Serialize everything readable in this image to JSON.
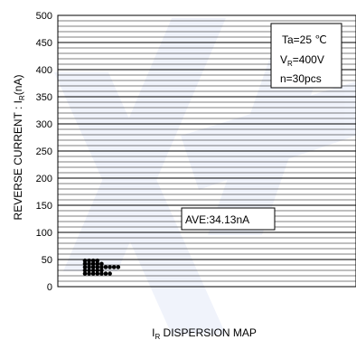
{
  "chart_data": {
    "type": "scatter",
    "title": "",
    "xlabel": {
      "main": "I",
      "sub": "R",
      "rest": " DISPERSION MAP"
    },
    "ylabel": {
      "main": "REVERSE CURRENT : I",
      "sub": "R",
      "rest": "(nA)"
    },
    "ylim": [
      0,
      500
    ],
    "yticks": [
      0,
      50,
      100,
      150,
      200,
      250,
      300,
      350,
      400,
      450,
      500
    ],
    "minor_grid_step": 10,
    "grid": true,
    "conditions": {
      "temperature": "Ta=25 ℃",
      "voltage": {
        "main": "V",
        "sub": "R",
        "rest": "=400V"
      },
      "samples": "n=30pcs"
    },
    "average_label": "AVE:34.13nA",
    "average_value": 34.13,
    "points": [
      {
        "row": 0,
        "value": 48
      },
      {
        "row": 1,
        "value": 48
      },
      {
        "row": 2,
        "value": 48
      },
      {
        "row": 3,
        "value": 48
      },
      {
        "row": 0,
        "value": 42
      },
      {
        "row": 1,
        "value": 42
      },
      {
        "row": 2,
        "value": 42
      },
      {
        "row": 3,
        "value": 42
      },
      {
        "row": 4,
        "value": 42
      },
      {
        "row": 0,
        "value": 36
      },
      {
        "row": 1,
        "value": 36
      },
      {
        "row": 2,
        "value": 36
      },
      {
        "row": 3,
        "value": 36
      },
      {
        "row": 4,
        "value": 36
      },
      {
        "row": 5,
        "value": 36
      },
      {
        "row": 6,
        "value": 36
      },
      {
        "row": 7,
        "value": 36
      },
      {
        "row": 8,
        "value": 36
      },
      {
        "row": 0,
        "value": 30
      },
      {
        "row": 1,
        "value": 30
      },
      {
        "row": 2,
        "value": 30
      },
      {
        "row": 3,
        "value": 30
      },
      {
        "row": 4,
        "value": 30
      },
      {
        "row": 0,
        "value": 24
      },
      {
        "row": 1,
        "value": 24
      },
      {
        "row": 2,
        "value": 24
      },
      {
        "row": 3,
        "value": 24
      },
      {
        "row": 4,
        "value": 24
      },
      {
        "row": 5,
        "value": 24
      },
      {
        "row": 6,
        "value": 24
      }
    ]
  }
}
